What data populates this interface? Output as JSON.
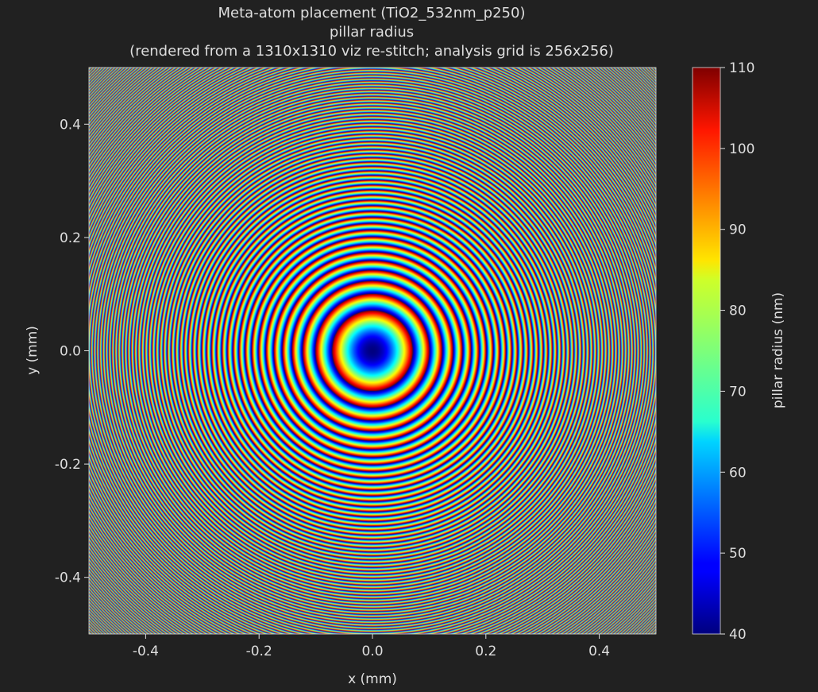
{
  "chart_data": {
    "type": "heatmap",
    "title_lines": [
      "Meta-atom placement (TiO2_532nm_p250)",
      "pillar radius",
      "(rendered from a 1310x1310 viz re-stitch; analysis grid is 256x256)"
    ],
    "xlabel": "x (mm)",
    "ylabel": "y (mm)",
    "xlim": [
      -0.5,
      0.5
    ],
    "ylim": [
      -0.5,
      0.5
    ],
    "xticks": [
      -0.4,
      -0.2,
      0.0,
      0.2,
      0.4
    ],
    "xtick_labels": [
      "-0.4",
      "-0.2",
      "0.0",
      "0.2",
      "0.4"
    ],
    "yticks": [
      0.4,
      0.2,
      0.0,
      -0.2,
      -0.4
    ],
    "ytick_labels": [
      "0.4",
      "0.2",
      "0.0",
      "-0.2",
      "-0.4"
    ],
    "colormap": "jet",
    "colorbar": {
      "label": "pillar radius (nm)",
      "range": [
        40,
        110
      ],
      "ticks": [
        110,
        100,
        90,
        80,
        70,
        60,
        50,
        40
      ],
      "tick_labels": [
        "110",
        "100",
        "90",
        "80",
        "70",
        "60",
        "50",
        "40"
      ]
    },
    "pattern": {
      "kind": "concentric rings (Fresnel-zone phase wrap)",
      "center": [
        0.0,
        0.0
      ],
      "center_value": 40,
      "value_just_outside_center": 110,
      "first_ring_radius_mm": 0.071
    },
    "grid": false
  },
  "colors": {
    "background": "#212121",
    "text": "#dedede",
    "axis": "#dedede"
  }
}
